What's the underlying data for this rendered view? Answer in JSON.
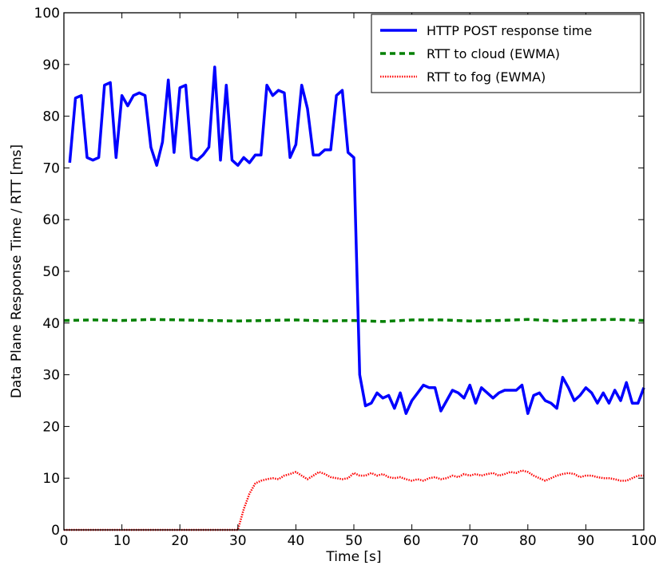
{
  "chart_data": {
    "type": "line",
    "xlabel": "Time [s]",
    "ylabel": "Data Plane Response Time / RTT [ms]",
    "xlim": [
      0,
      100
    ],
    "ylim": [
      0,
      100
    ],
    "x_ticks": [
      "0",
      "10",
      "20",
      "30",
      "40",
      "50",
      "60",
      "70",
      "80",
      "90",
      "100"
    ],
    "y_ticks": [
      "0",
      "10",
      "20",
      "30",
      "40",
      "50",
      "60",
      "70",
      "80",
      "90",
      "100"
    ],
    "grid": false,
    "legend_position": "top-right",
    "series": [
      {
        "name": "HTTP POST response time",
        "color": "#0000ff",
        "style": "solid",
        "x": [
          1,
          2,
          3,
          4,
          5,
          6,
          7,
          8,
          9,
          10,
          11,
          12,
          13,
          14,
          15,
          16,
          17,
          18,
          19,
          20,
          21,
          22,
          23,
          24,
          25,
          26,
          27,
          28,
          29,
          30,
          31,
          32,
          33,
          34,
          35,
          36,
          37,
          38,
          39,
          40,
          41,
          42,
          43,
          44,
          45,
          46,
          47,
          48,
          49,
          50,
          51,
          52,
          53,
          54,
          55,
          56,
          57,
          58,
          59,
          60,
          61,
          62,
          63,
          64,
          65,
          66,
          67,
          68,
          69,
          70,
          71,
          72,
          73,
          74,
          75,
          76,
          77,
          78,
          79,
          80,
          81,
          82,
          83,
          84,
          85,
          86,
          87,
          88,
          89,
          90,
          91,
          92,
          93,
          94,
          95,
          96,
          97,
          98,
          99,
          100
        ],
        "y": [
          71,
          83.5,
          84,
          72,
          71.5,
          72,
          86,
          86.5,
          72,
          84,
          82,
          84,
          84.5,
          84,
          74,
          70.5,
          75,
          87,
          73,
          85.5,
          86,
          72,
          71.5,
          72.5,
          74,
          89.5,
          71.5,
          86,
          71.5,
          70.5,
          72,
          71,
          72.5,
          72.5,
          86,
          84,
          85,
          84.5,
          72,
          74.5,
          86,
          81.5,
          72.5,
          72.5,
          73.5,
          73.5,
          84,
          85,
          73,
          72,
          30,
          24,
          24.5,
          26.5,
          25.5,
          26,
          23.5,
          26.5,
          22.5,
          25,
          26.5,
          28,
          27.5,
          27.5,
          23,
          25,
          27,
          26.5,
          25.5,
          28,
          24.5,
          27.5,
          26.5,
          25.5,
          26.5,
          27,
          27,
          27,
          28,
          22.5,
          26,
          26.5,
          25,
          24.5,
          23.5,
          29.5,
          27.5,
          25,
          26,
          27.5,
          26.5,
          24.5,
          26.5,
          24.5,
          27,
          25,
          28.5,
          24.5,
          24.5,
          27.5
        ]
      },
      {
        "name": "RTT to cloud (EWMA)",
        "color": "#008000",
        "style": "dashed",
        "x": [
          0,
          5,
          10,
          15,
          20,
          25,
          30,
          35,
          40,
          45,
          50,
          55,
          60,
          65,
          70,
          75,
          80,
          85,
          90,
          95,
          100
        ],
        "y": [
          40.5,
          40.6,
          40.5,
          40.7,
          40.6,
          40.5,
          40.4,
          40.5,
          40.6,
          40.4,
          40.5,
          40.3,
          40.6,
          40.6,
          40.4,
          40.5,
          40.7,
          40.4,
          40.6,
          40.7,
          40.5
        ]
      },
      {
        "name": "RTT to fog (EWMA)",
        "color": "#ff0000",
        "style": "dotted",
        "x": [
          0,
          5,
          10,
          15,
          20,
          25,
          28,
          29,
          30,
          31,
          32,
          33,
          34,
          35,
          36,
          37,
          38,
          39,
          40,
          41,
          42,
          43,
          44,
          45,
          46,
          47,
          48,
          49,
          50,
          51,
          52,
          53,
          54,
          55,
          56,
          57,
          58,
          59,
          60,
          61,
          62,
          63,
          64,
          65,
          66,
          67,
          68,
          69,
          70,
          71,
          72,
          73,
          74,
          75,
          76,
          77,
          78,
          79,
          80,
          81,
          82,
          83,
          84,
          85,
          86,
          87,
          88,
          89,
          90,
          91,
          92,
          93,
          94,
          95,
          96,
          97,
          98,
          99,
          100
        ],
        "y": [
          0,
          0,
          0,
          0,
          0,
          0,
          0,
          0,
          0,
          4,
          7,
          9,
          9.5,
          9.8,
          10,
          9.8,
          10.5,
          10.8,
          11.2,
          10.5,
          9.8,
          10.5,
          11.2,
          10.8,
          10.2,
          10,
          9.8,
          10,
          11,
          10.5,
          10.5,
          11,
          10.5,
          10.8,
          10.2,
          10,
          10.2,
          9.8,
          9.5,
          9.8,
          9.5,
          10,
          10.2,
          9.8,
          10,
          10.5,
          10.2,
          10.8,
          10.5,
          10.8,
          10.5,
          10.8,
          11,
          10.5,
          10.8,
          11.2,
          11,
          11.5,
          11.2,
          10.5,
          10,
          9.5,
          10,
          10.5,
          10.8,
          11,
          10.8,
          10.2,
          10.5,
          10.5,
          10.2,
          10,
          10,
          9.8,
          9.5,
          9.5,
          10,
          10.5,
          10.5
        ]
      }
    ]
  }
}
